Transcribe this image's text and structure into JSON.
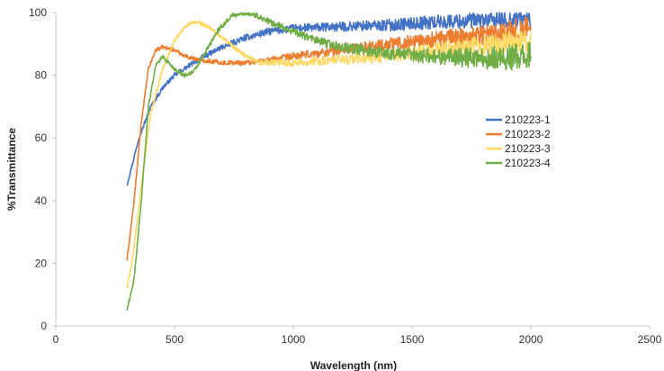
{
  "chart_data": {
    "type": "line",
    "xlabel": "Wavelength (nm)",
    "ylabel": "%Transmittance",
    "xlim": [
      0,
      2500
    ],
    "ylim": [
      0,
      100
    ],
    "x_ticks": [
      "0",
      "500",
      "1000",
      "1500",
      "2000",
      "2500"
    ],
    "y_ticks": [
      "0",
      "20",
      "40",
      "60",
      "80",
      "100"
    ],
    "grid": false,
    "legend_position": "right",
    "series": [
      {
        "name": "210223-1",
        "color": "#4472C4",
        "noise": [
          [
            300,
            0.5
          ],
          [
            800,
            1.0
          ],
          [
            1200,
            1.5
          ],
          [
            1600,
            2.2
          ],
          [
            2000,
            3.0
          ]
        ],
        "points": [
          [
            300,
            45
          ],
          [
            350,
            60
          ],
          [
            400,
            70
          ],
          [
            450,
            76
          ],
          [
            500,
            80
          ],
          [
            600,
            85
          ],
          [
            700,
            89
          ],
          [
            800,
            92
          ],
          [
            900,
            94
          ],
          [
            1000,
            95
          ],
          [
            1200,
            95.5
          ],
          [
            1400,
            96
          ],
          [
            1600,
            97
          ],
          [
            1800,
            97.5
          ],
          [
            2000,
            98
          ]
        ]
      },
      {
        "name": "210223-2",
        "color": "#ED7D31",
        "noise": [
          [
            300,
            0.5
          ],
          [
            800,
            0.8
          ],
          [
            1200,
            1.5
          ],
          [
            1600,
            2.5
          ],
          [
            2000,
            4.0
          ]
        ],
        "points": [
          [
            300,
            21
          ],
          [
            330,
            40
          ],
          [
            360,
            65
          ],
          [
            390,
            82
          ],
          [
            420,
            88
          ],
          [
            450,
            89
          ],
          [
            500,
            88
          ],
          [
            550,
            86
          ],
          [
            600,
            85
          ],
          [
            700,
            84
          ],
          [
            800,
            84
          ],
          [
            900,
            85
          ],
          [
            1000,
            86
          ],
          [
            1200,
            88
          ],
          [
            1400,
            90
          ],
          [
            1600,
            91.5
          ],
          [
            1800,
            93
          ],
          [
            2000,
            95
          ]
        ]
      },
      {
        "name": "210223-3",
        "color": "#FFD966",
        "noise": [
          [
            300,
            0.5
          ],
          [
            800,
            0.8
          ],
          [
            1200,
            1.5
          ],
          [
            1600,
            2.5
          ],
          [
            2000,
            4.0
          ]
        ],
        "points": [
          [
            300,
            12
          ],
          [
            330,
            25
          ],
          [
            360,
            45
          ],
          [
            400,
            68
          ],
          [
            450,
            82
          ],
          [
            500,
            91
          ],
          [
            550,
            96
          ],
          [
            600,
            97
          ],
          [
            650,
            95
          ],
          [
            700,
            92
          ],
          [
            750,
            89
          ],
          [
            800,
            86
          ],
          [
            850,
            84
          ],
          [
            900,
            84
          ],
          [
            1000,
            84
          ],
          [
            1200,
            85
          ],
          [
            1400,
            86
          ],
          [
            1600,
            88
          ],
          [
            1800,
            89.5
          ],
          [
            2000,
            91
          ]
        ]
      },
      {
        "name": "210223-4",
        "color": "#70AD47",
        "noise": [
          [
            300,
            0.5
          ],
          [
            800,
            0.8
          ],
          [
            1200,
            1.5
          ],
          [
            1600,
            2.5
          ],
          [
            2000,
            4.5
          ]
        ],
        "points": [
          [
            300,
            5
          ],
          [
            330,
            15
          ],
          [
            360,
            40
          ],
          [
            390,
            70
          ],
          [
            420,
            83
          ],
          [
            450,
            86
          ],
          [
            500,
            82
          ],
          [
            540,
            80
          ],
          [
            580,
            81
          ],
          [
            620,
            86
          ],
          [
            680,
            94
          ],
          [
            740,
            99
          ],
          [
            800,
            100
          ],
          [
            850,
            99
          ],
          [
            900,
            97
          ],
          [
            1000,
            94
          ],
          [
            1100,
            91
          ],
          [
            1200,
            89
          ],
          [
            1400,
            87
          ],
          [
            1600,
            86
          ],
          [
            1800,
            85.5
          ],
          [
            2000,
            86
          ]
        ]
      }
    ]
  }
}
